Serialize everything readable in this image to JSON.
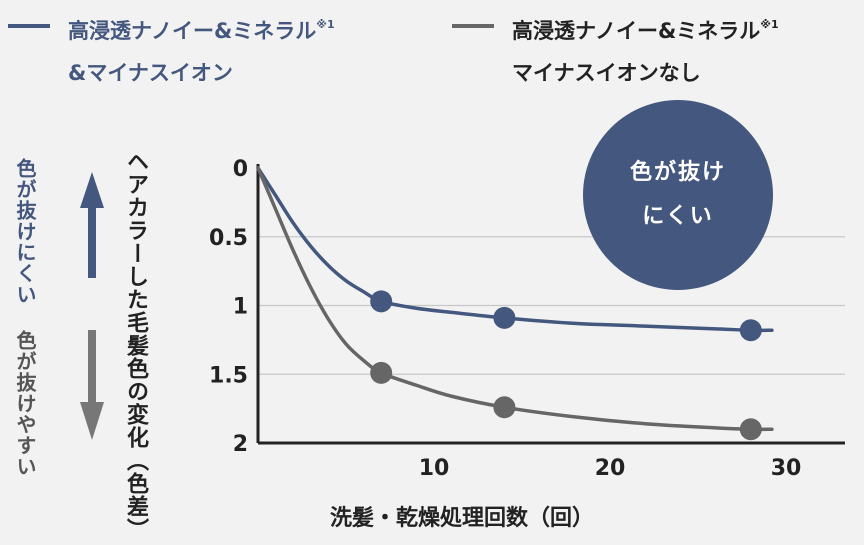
{
  "legend": {
    "series1_line1": "高浸透ナノイー&ミネラル",
    "series1_sup": "※1",
    "series1_line2": "&マイナスイオン",
    "series2_line1": "高浸透ナノイー&ミネラル",
    "series2_sup": "※1",
    "series2_line2": "マイナスイオンなし"
  },
  "side_labels": {
    "up": "色が抜けにくい",
    "down": "色が抜けやすい"
  },
  "badge": {
    "line1": "色が抜け",
    "line2": "にくい"
  },
  "colors": {
    "series1": "#44577e",
    "series2": "#666666",
    "up_arrow": "#44577e",
    "down_arrow": "#777777"
  },
  "chart_data": {
    "type": "line",
    "xlabel": "洗髪・乾燥処理回数（回）",
    "ylabel": "ヘアカラーした毛髪色の変化（色差）",
    "x_ticks": [
      10,
      20,
      30
    ],
    "y_ticks": [
      0,
      0.5,
      1,
      1.5,
      2
    ],
    "xlim": [
      0,
      33
    ],
    "ylim": [
      0,
      2
    ],
    "y_inverted": true,
    "grid": "horizontal",
    "series": [
      {
        "name": "高浸透ナノイー&ミネラル※1&マイナスイオン",
        "color": "#44577e",
        "points": [
          [
            7,
            0.97
          ],
          [
            14,
            1.09
          ],
          [
            28,
            1.18
          ]
        ],
        "curve": [
          [
            0,
            0
          ],
          [
            1,
            0.2
          ],
          [
            2,
            0.4
          ],
          [
            3,
            0.57
          ],
          [
            4,
            0.71
          ],
          [
            5,
            0.82
          ],
          [
            6,
            0.9
          ],
          [
            7,
            0.97
          ],
          [
            9,
            1.02
          ],
          [
            11,
            1.05
          ],
          [
            14,
            1.09
          ],
          [
            18,
            1.13
          ],
          [
            22,
            1.15
          ],
          [
            26,
            1.17
          ],
          [
            28,
            1.18
          ],
          [
            29.2,
            1.18
          ]
        ]
      },
      {
        "name": "高浸透ナノイー&ミネラル※1マイナスイオンなし",
        "color": "#666666",
        "points": [
          [
            7,
            1.49
          ],
          [
            14,
            1.74
          ],
          [
            28,
            1.9
          ]
        ],
        "curve": [
          [
            0,
            0
          ],
          [
            1,
            0.3
          ],
          [
            2,
            0.6
          ],
          [
            3,
            0.87
          ],
          [
            4,
            1.1
          ],
          [
            5,
            1.28
          ],
          [
            6,
            1.4
          ],
          [
            7,
            1.49
          ],
          [
            9,
            1.58
          ],
          [
            11,
            1.66
          ],
          [
            14,
            1.74
          ],
          [
            18,
            1.81
          ],
          [
            22,
            1.86
          ],
          [
            26,
            1.89
          ],
          [
            28,
            1.9
          ],
          [
            29.2,
            1.9
          ]
        ]
      }
    ]
  }
}
